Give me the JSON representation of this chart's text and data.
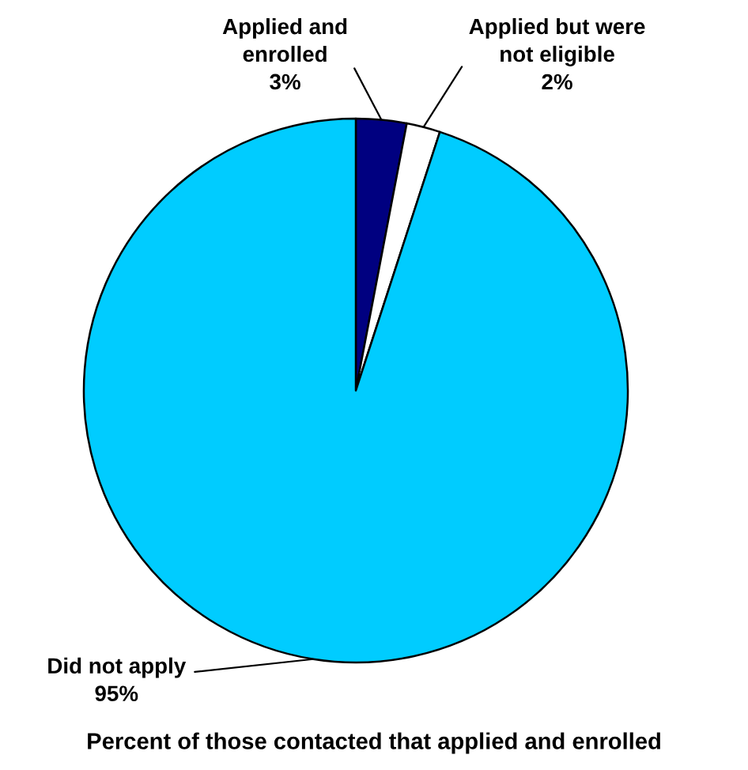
{
  "chart_data": {
    "type": "pie",
    "title": "Percent of those contacted that applied and enrolled",
    "categories": [
      "Applied and\nenrolled",
      "Applied but were\nnot eligible",
      "Did not apply"
    ],
    "values": [
      3,
      2,
      95
    ],
    "colors": [
      "#000080",
      "#ffffff",
      "#00ccff"
    ],
    "value_labels": [
      "3%",
      "2%",
      "95%"
    ]
  }
}
